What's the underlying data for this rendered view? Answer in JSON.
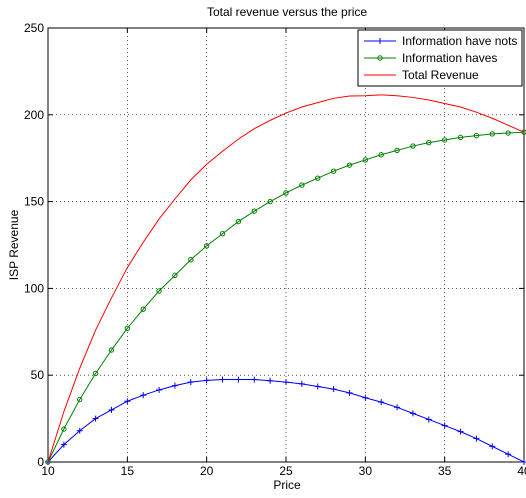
{
  "chart_data": {
    "type": "line",
    "title": "Total revenue versus the price",
    "xlabel": "Price",
    "ylabel": "ISP Revenue",
    "xlim": [
      10,
      40
    ],
    "ylim": [
      0,
      250
    ],
    "xticks": [
      10,
      15,
      20,
      25,
      30,
      35,
      40
    ],
    "yticks": [
      0,
      50,
      100,
      150,
      200,
      250
    ],
    "grid": true,
    "legend_position": "top-right",
    "series": [
      {
        "name": "Information have nots",
        "color": "#0000ff",
        "marker": "plus",
        "x": [
          10,
          11,
          12,
          13,
          14,
          15,
          16,
          17,
          18,
          19,
          20,
          21,
          22,
          23,
          24,
          25,
          26,
          27,
          28,
          29,
          30,
          31,
          32,
          33,
          34,
          35,
          36,
          37,
          38,
          39,
          40
        ],
        "values": [
          0,
          10,
          18,
          25,
          30,
          35,
          38.5,
          41.5,
          44,
          46,
          47,
          47.5,
          47.5,
          47.5,
          46.8,
          46,
          45,
          43.5,
          42,
          39.8,
          37,
          34.5,
          31.5,
          28,
          24.5,
          21,
          17.5,
          13.5,
          9,
          4.5,
          0
        ]
      },
      {
        "name": "Information haves",
        "color": "#008000",
        "marker": "circle",
        "x": [
          10,
          11,
          12,
          13,
          14,
          15,
          16,
          17,
          18,
          19,
          20,
          21,
          22,
          23,
          24,
          25,
          26,
          27,
          28,
          29,
          30,
          31,
          32,
          33,
          34,
          35,
          36,
          37,
          38,
          39,
          40
        ],
        "values": [
          0,
          19,
          36,
          51,
          64.5,
          77,
          88,
          98.5,
          107.5,
          116.5,
          124.5,
          131.5,
          138.5,
          144.5,
          150,
          155,
          159.5,
          163.5,
          167.5,
          171,
          174,
          177,
          179.5,
          182,
          184,
          185.5,
          187,
          188,
          189,
          189.5,
          190
        ]
      },
      {
        "name": "Total Revenue",
        "color": "#ff0000",
        "marker": "none",
        "x": [
          10,
          11,
          12,
          13,
          14,
          15,
          16,
          17,
          18,
          19,
          20,
          21,
          22,
          23,
          24,
          25,
          26,
          27,
          28,
          29,
          30,
          31,
          32,
          33,
          34,
          35,
          36,
          37,
          38,
          39,
          40
        ],
        "values": [
          0,
          29,
          54,
          76,
          94.5,
          112,
          126.5,
          140,
          151.5,
          162.5,
          171.5,
          179,
          186,
          192,
          196.8,
          201,
          204.5,
          207,
          209.5,
          210.8,
          211,
          211.5,
          211,
          210,
          208.5,
          206.5,
          204.5,
          201.5,
          198,
          194,
          190
        ]
      }
    ]
  }
}
